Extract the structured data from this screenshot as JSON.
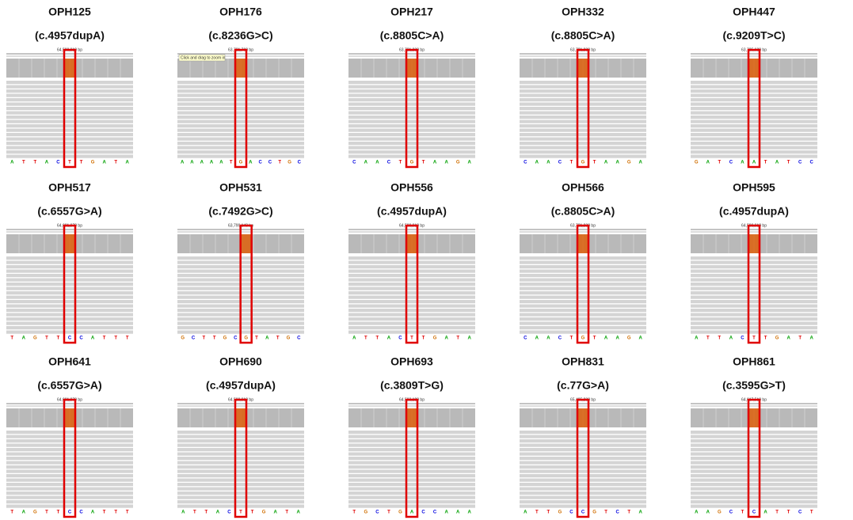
{
  "panels": [
    {
      "sample": "OPH125",
      "variant": "(c.4957dupA)",
      "locus": "64,590,910 bp",
      "bases": [
        "A",
        "T",
        "T",
        "A",
        "C",
        "T",
        "T",
        "G",
        "A",
        "T",
        "A"
      ]
    },
    {
      "sample": "OPH176",
      "variant": "(c.8236G>C)",
      "locus": "63,721,760 bp",
      "tooltip": "Click and drag to zoom in",
      "bases": [
        "A",
        "A",
        "A",
        "A",
        "A",
        "T",
        "G",
        "A",
        "C",
        "C",
        "T",
        "G",
        "C"
      ]
    },
    {
      "sample": "OPH217",
      "variant": "(c.8805C>A)",
      "locus": "63,721,230 bp",
      "bases": [
        "C",
        "A",
        "A",
        "C",
        "T",
        "G",
        "T",
        "A",
        "A",
        "G",
        "A"
      ]
    },
    {
      "sample": "OPH332",
      "variant": "(c.8805C>A)",
      "locus": "63,721,230 bp",
      "bases": [
        "C",
        "A",
        "A",
        "C",
        "T",
        "G",
        "T",
        "A",
        "A",
        "G",
        "A"
      ]
    },
    {
      "sample": "OPH447",
      "variant": "(c.9209T>C)",
      "locus": "63,725,620 bp",
      "bases": [
        "G",
        "A",
        "T",
        "C",
        "A",
        "A",
        "T",
        "A",
        "T",
        "C",
        "C"
      ]
    },
    {
      "sample": "OPH517",
      "variant": "(c.6557G>A)",
      "locus": "64,601,970 bp",
      "bases": [
        "T",
        "A",
        "G",
        "T",
        "T",
        "C",
        "C",
        "A",
        "T",
        "T",
        "T"
      ]
    },
    {
      "sample": "OPH531",
      "variant": "(c.7492G>C)",
      "locus": "63,799,140 bp",
      "bases": [
        "G",
        "C",
        "T",
        "T",
        "G",
        "C",
        "G",
        "T",
        "A",
        "T",
        "G",
        "C"
      ]
    },
    {
      "sample": "OPH556",
      "variant": "(c.4957dupA)",
      "locus": "64,590,910 bp",
      "bases": [
        "A",
        "T",
        "T",
        "A",
        "C",
        "T",
        "T",
        "G",
        "A",
        "T",
        "A"
      ]
    },
    {
      "sample": "OPH566",
      "variant": "(c.8805C>A)",
      "locus": "63,721,230 bp",
      "bases": [
        "C",
        "A",
        "A",
        "C",
        "T",
        "G",
        "T",
        "A",
        "A",
        "G",
        "A"
      ]
    },
    {
      "sample": "OPH595",
      "variant": "(c.4957dupA)",
      "locus": "64,590,910 bp",
      "bases": [
        "A",
        "T",
        "T",
        "A",
        "C",
        "T",
        "T",
        "G",
        "A",
        "T",
        "A"
      ]
    },
    {
      "sample": "OPH641",
      "variant": "(c.6557G>A)",
      "locus": "64,601,970 bp",
      "bases": [
        "T",
        "A",
        "G",
        "T",
        "T",
        "C",
        "C",
        "A",
        "T",
        "T",
        "T"
      ]
    },
    {
      "sample": "OPH690",
      "variant": "(c.4957dupA)",
      "locus": "64,590,910 bp",
      "bases": [
        "A",
        "T",
        "T",
        "A",
        "C",
        "T",
        "T",
        "G",
        "A",
        "T",
        "A"
      ]
    },
    {
      "sample": "OPH693",
      "variant": "(c.3809T>G)",
      "locus": "64,593,180 bp",
      "bases": [
        "T",
        "G",
        "C",
        "T",
        "G",
        "A",
        "C",
        "C",
        "A",
        "A",
        "A"
      ]
    },
    {
      "sample": "OPH831",
      "variant": "(c.77G>A)",
      "locus": "65,495,230 bp",
      "bases": [
        "A",
        "T",
        "T",
        "G",
        "C",
        "C",
        "G",
        "T",
        "C",
        "T",
        "A"
      ]
    },
    {
      "sample": "OPH861",
      "variant": "(c.3595G>T)",
      "locus": "64,617,510 bp",
      "bases": [
        "A",
        "A",
        "G",
        "C",
        "T",
        "C",
        "A",
        "T",
        "T",
        "C",
        "T"
      ]
    }
  ]
}
